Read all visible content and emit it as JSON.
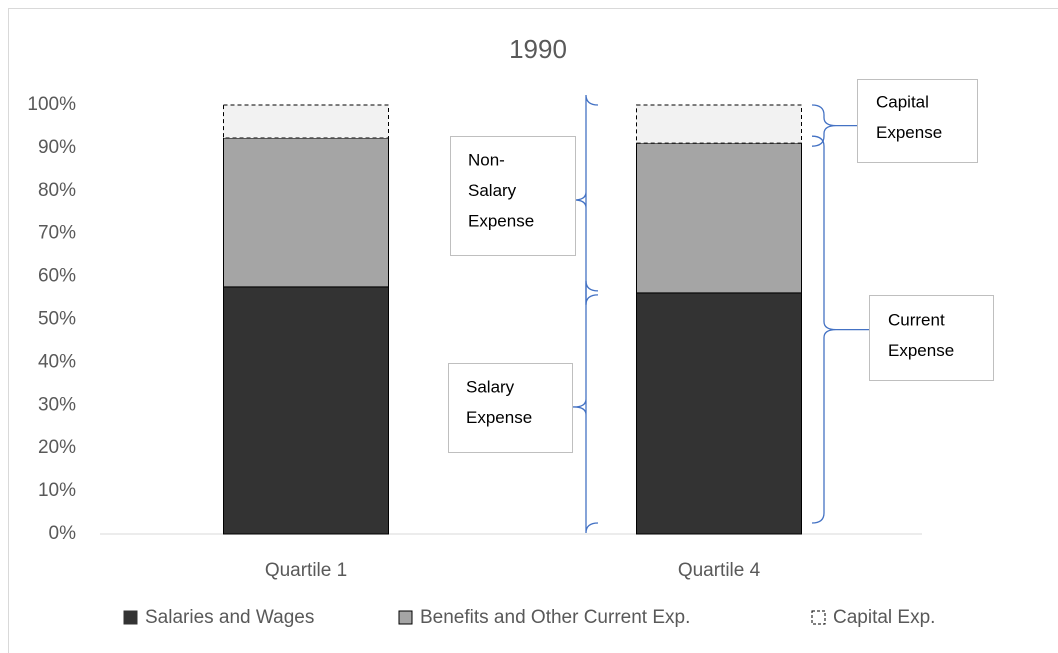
{
  "chart_data": {
    "type": "stacked-bar",
    "title": "1990",
    "categories": [
      "Quartile 1",
      "Quartile 4"
    ],
    "series": [
      {
        "name": "Salaries and Wages",
        "color": "#333333",
        "values": [
          57.6,
          56.2
        ]
      },
      {
        "name": "Benefits and Other Current Exp.",
        "color": "#a5a5a5",
        "values": [
          34.7,
          34.9
        ]
      },
      {
        "name": "Capital Exp.",
        "color": "#f2f2f2",
        "dashed": true,
        "values": [
          7.7,
          8.9
        ]
      }
    ],
    "ylim": [
      0,
      100
    ],
    "yticks": [
      {
        "value": 0,
        "label": "0%"
      },
      {
        "value": 10,
        "label": "10%"
      },
      {
        "value": 20,
        "label": "20%"
      },
      {
        "value": 30,
        "label": "30%"
      },
      {
        "value": 40,
        "label": "40%"
      },
      {
        "value": 50,
        "label": "50%"
      },
      {
        "value": 60,
        "label": "60%"
      },
      {
        "value": 70,
        "label": "70%"
      },
      {
        "value": 80,
        "label": "80%"
      },
      {
        "value": 90,
        "label": "90%"
      },
      {
        "value": 100,
        "label": "100%"
      }
    ],
    "legend": "bottom",
    "annotations": [
      {
        "lines": [
          "Non-",
          "Salary",
          "Expense"
        ]
      },
      {
        "lines": [
          "Salary",
          "Expense"
        ]
      },
      {
        "lines": [
          "Capital",
          "Expense"
        ]
      },
      {
        "lines": [
          "Current",
          "Expense"
        ]
      }
    ]
  }
}
